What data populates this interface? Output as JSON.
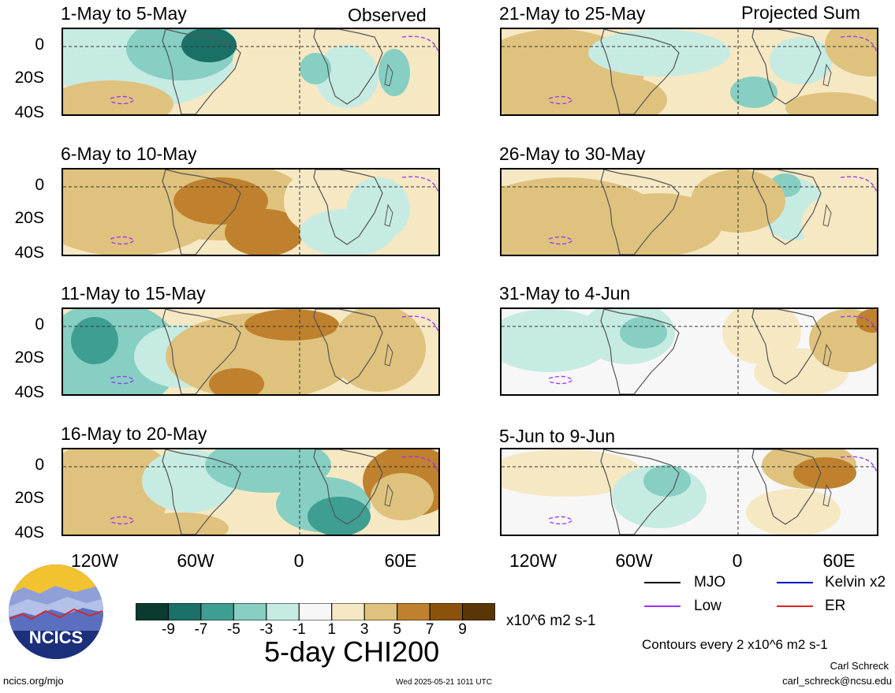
{
  "panels": {
    "left_header": "Observed",
    "right_header": "Projected Sum",
    "left": [
      {
        "title": "1-May to 5-May"
      },
      {
        "title": "6-May to 10-May"
      },
      {
        "title": "11-May to 15-May"
      },
      {
        "title": "16-May to 20-May"
      }
    ],
    "right": [
      {
        "title": "21-May to 25-May"
      },
      {
        "title": "26-May to 30-May"
      },
      {
        "title": "31-May to 4-Jun"
      },
      {
        "title": "5-Jun to 9-Jun"
      }
    ],
    "y_ticks": [
      "0",
      "20S",
      "40S"
    ],
    "x_ticks": [
      "120W",
      "60W",
      "0",
      "60E"
    ]
  },
  "legend": {
    "items": [
      {
        "label": "MJO",
        "color": "#000000"
      },
      {
        "label": "Kelvin x2",
        "color": "#0000cc"
      },
      {
        "label": "Low",
        "color": "#9b30ff"
      },
      {
        "label": "ER",
        "color": "#e02020"
      }
    ],
    "contour_note": "Contours every 2 x10^6 m2 s-1"
  },
  "colorbar": {
    "colors": [
      "#0b3b30",
      "#1a7066",
      "#3f9e92",
      "#86cfc2",
      "#c6ebe3",
      "#f7f7f7",
      "#f6e8c3",
      "#dfc27d",
      "#bf812d",
      "#8c510a",
      "#5a3606"
    ],
    "labels": [
      "-9",
      "-7",
      "-5",
      "-3",
      "-1",
      "1",
      "3",
      "5",
      "7",
      "9"
    ],
    "units": "x10^6 m2 s-1",
    "title": "5-day CHI200"
  },
  "footer": {
    "logo_text": "NCICS",
    "site": "ncics.org/mjo",
    "timestamp": "Wed 2025-05-21 1011 UTC",
    "author": "Carl Schreck",
    "email": "carl_schreck@ncsu.edu"
  }
}
